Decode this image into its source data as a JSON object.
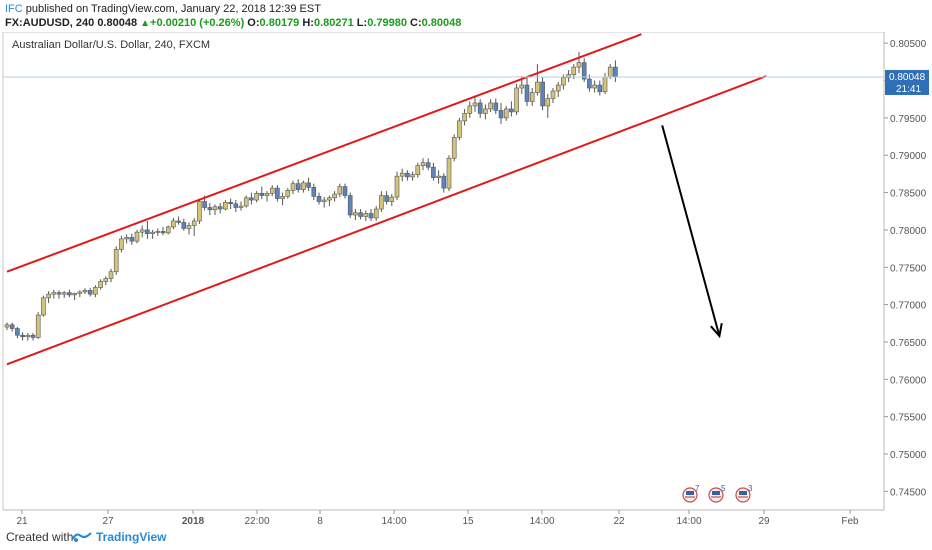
{
  "header": {
    "publisher": "IFC",
    "published_text": "published on TradingView.com, January 22, 2018 12:39 EST",
    "symbol": "FX:AUDUSD, 240",
    "last": "0.80048",
    "change_arrow": "▲",
    "change": "+0.00210 (+0.26%)",
    "o_label": "O:",
    "o_value": "0.80179",
    "h_label": "H:",
    "h_value": "0.80271",
    "l_label": "L:",
    "l_value": "0.79980",
    "c_label": "C:",
    "c_value": "0.80048"
  },
  "footer": {
    "created_with": "Created with",
    "brand": "TradingView",
    "logo_icon": "tradingview-logo-icon"
  },
  "colors": {
    "candle_up": "#d4c47a",
    "candle_down": "#5b84b8",
    "channel": "#e01919",
    "arrow": "#000000",
    "price_tag": "#2f6fb6",
    "axis_text": "#555555"
  },
  "chart_data": {
    "type": "candlestick",
    "title": "Australian Dollar/U.S. Dollar, 240, FXCM",
    "x_ticks": [
      "21",
      "27",
      "2018",
      "22:00",
      "8",
      "14:00",
      "15",
      "14:00",
      "22",
      "14:00",
      "29",
      "Feb"
    ],
    "y_ticks": [
      "0.80500",
      "0.80000",
      "0.79500",
      "0.79000",
      "0.78500",
      "0.78000",
      "0.77500",
      "0.77000",
      "0.76500",
      "0.76000",
      "0.75500",
      "0.75000",
      "0.74500"
    ],
    "ylim": [
      0.7425,
      0.8065
    ],
    "y_tick_values": [
      0.805,
      0.8,
      0.795,
      0.79,
      0.785,
      0.78,
      0.775,
      0.77,
      0.765,
      0.76,
      0.755,
      0.75,
      0.745
    ],
    "last_price_label": "0.80048",
    "countdown_label": "21:41",
    "last_price": 0.80048,
    "event_badges": [
      {
        "icon": "us-flag-event-icon",
        "count": "7"
      },
      {
        "icon": "us-flag-event-icon",
        "count": "5"
      },
      {
        "icon": "us-flag-event-icon",
        "count": "3"
      }
    ],
    "channel_lines": [
      {
        "name": "upper",
        "x0": 0,
        "y0": 0.7744,
        "x1": 122,
        "y1": 0.8062
      },
      {
        "name": "lower",
        "x0": 0,
        "y0": 0.762,
        "x1": 146,
        "y1": 0.8006
      }
    ],
    "forecast_arrow": {
      "x0": 126,
      "y0": 0.794,
      "x1": 137,
      "y1": 0.7658
    },
    "candles": [
      [
        0.767,
        0.7676,
        0.7666,
        0.7673
      ],
      [
        0.7673,
        0.7676,
        0.7664,
        0.7668
      ],
      [
        0.7668,
        0.767,
        0.7655,
        0.7659
      ],
      [
        0.7659,
        0.7663,
        0.7652,
        0.7657
      ],
      [
        0.7657,
        0.7662,
        0.7652,
        0.7659
      ],
      [
        0.7659,
        0.7662,
        0.7652,
        0.7656
      ],
      [
        0.7656,
        0.769,
        0.7654,
        0.7686
      ],
      [
        0.7686,
        0.7712,
        0.7684,
        0.7709
      ],
      [
        0.7709,
        0.7718,
        0.7702,
        0.7714
      ],
      [
        0.7714,
        0.772,
        0.7708,
        0.7716
      ],
      [
        0.7716,
        0.7719,
        0.7708,
        0.7714
      ],
      [
        0.7714,
        0.7718,
        0.7709,
        0.7716
      ],
      [
        0.7716,
        0.772,
        0.771,
        0.7713
      ],
      [
        0.7713,
        0.7716,
        0.7706,
        0.7715
      ],
      [
        0.7715,
        0.7719,
        0.771,
        0.7717
      ],
      [
        0.7717,
        0.7722,
        0.7714,
        0.7719
      ],
      [
        0.7719,
        0.7722,
        0.7711,
        0.7714
      ],
      [
        0.7714,
        0.7726,
        0.771,
        0.7723
      ],
      [
        0.7723,
        0.7734,
        0.772,
        0.7731
      ],
      [
        0.7731,
        0.7738,
        0.7726,
        0.7735
      ],
      [
        0.7735,
        0.7748,
        0.773,
        0.7744
      ],
      [
        0.7744,
        0.7778,
        0.774,
        0.7774
      ],
      [
        0.7774,
        0.7792,
        0.777,
        0.7788
      ],
      [
        0.7788,
        0.7794,
        0.7782,
        0.779
      ],
      [
        0.779,
        0.7795,
        0.778,
        0.7785
      ],
      [
        0.7785,
        0.78,
        0.7782,
        0.7797
      ],
      [
        0.7797,
        0.7806,
        0.779,
        0.78
      ],
      [
        0.78,
        0.7812,
        0.7788,
        0.7795
      ],
      [
        0.7795,
        0.78,
        0.7788,
        0.7797
      ],
      [
        0.7797,
        0.7802,
        0.7792,
        0.7798
      ],
      [
        0.7798,
        0.7804,
        0.7793,
        0.7796
      ],
      [
        0.7796,
        0.7806,
        0.7794,
        0.7804
      ],
      [
        0.7804,
        0.7816,
        0.7801,
        0.7812
      ],
      [
        0.7812,
        0.7818,
        0.7807,
        0.781
      ],
      [
        0.781,
        0.7815,
        0.7799,
        0.7802
      ],
      [
        0.7802,
        0.781,
        0.7794,
        0.7806
      ],
      [
        0.7806,
        0.7816,
        0.7792,
        0.7812
      ],
      [
        0.7812,
        0.7842,
        0.7808,
        0.7838
      ],
      [
        0.7838,
        0.7846,
        0.7826,
        0.783
      ],
      [
        0.783,
        0.7836,
        0.782,
        0.7827
      ],
      [
        0.7827,
        0.7834,
        0.782,
        0.7831
      ],
      [
        0.7831,
        0.7836,
        0.7822,
        0.7828
      ],
      [
        0.7828,
        0.784,
        0.7826,
        0.7837
      ],
      [
        0.7837,
        0.7842,
        0.7828,
        0.7835
      ],
      [
        0.7835,
        0.784,
        0.7824,
        0.783
      ],
      [
        0.783,
        0.7838,
        0.7826,
        0.7832
      ],
      [
        0.7832,
        0.7846,
        0.783,
        0.7843
      ],
      [
        0.7843,
        0.785,
        0.7834,
        0.784
      ],
      [
        0.784,
        0.7852,
        0.7837,
        0.7849
      ],
      [
        0.7849,
        0.7858,
        0.7841,
        0.7846
      ],
      [
        0.7846,
        0.7852,
        0.7838,
        0.7849
      ],
      [
        0.7849,
        0.786,
        0.7845,
        0.7856
      ],
      [
        0.7856,
        0.786,
        0.7838,
        0.7842
      ],
      [
        0.7842,
        0.785,
        0.7833,
        0.7845
      ],
      [
        0.7845,
        0.7856,
        0.7842,
        0.7853
      ],
      [
        0.7853,
        0.7866,
        0.7848,
        0.7862
      ],
      [
        0.7862,
        0.7868,
        0.785,
        0.7854
      ],
      [
        0.7854,
        0.7866,
        0.785,
        0.7863
      ],
      [
        0.7863,
        0.787,
        0.7852,
        0.7857
      ],
      [
        0.7857,
        0.7862,
        0.784,
        0.7845
      ],
      [
        0.7845,
        0.785,
        0.7834,
        0.7838
      ],
      [
        0.7838,
        0.7844,
        0.783,
        0.784
      ],
      [
        0.784,
        0.7846,
        0.7832,
        0.7843
      ],
      [
        0.7843,
        0.7852,
        0.7838,
        0.7848
      ],
      [
        0.7848,
        0.7862,
        0.7844,
        0.7858
      ],
      [
        0.7858,
        0.7862,
        0.7842,
        0.7846
      ],
      [
        0.7846,
        0.785,
        0.7816,
        0.782
      ],
      [
        0.782,
        0.7828,
        0.7813,
        0.7823
      ],
      [
        0.7823,
        0.7828,
        0.7814,
        0.7818
      ],
      [
        0.7818,
        0.7826,
        0.7812,
        0.7822
      ],
      [
        0.7822,
        0.7828,
        0.7812,
        0.7816
      ],
      [
        0.7816,
        0.7832,
        0.7812,
        0.7828
      ],
      [
        0.7828,
        0.7852,
        0.7824,
        0.7846
      ],
      [
        0.7846,
        0.7852,
        0.7834,
        0.7838
      ],
      [
        0.7838,
        0.7848,
        0.7832,
        0.7844
      ],
      [
        0.7844,
        0.7878,
        0.784,
        0.7872
      ],
      [
        0.7872,
        0.7882,
        0.7865,
        0.7876
      ],
      [
        0.7876,
        0.788,
        0.7866,
        0.7871
      ],
      [
        0.7871,
        0.7878,
        0.7866,
        0.7874
      ],
      [
        0.7874,
        0.789,
        0.787,
        0.7886
      ],
      [
        0.7886,
        0.7896,
        0.788,
        0.789
      ],
      [
        0.789,
        0.7896,
        0.788,
        0.7884
      ],
      [
        0.7884,
        0.789,
        0.7866,
        0.787
      ],
      [
        0.787,
        0.788,
        0.7862,
        0.7872
      ],
      [
        0.7872,
        0.7876,
        0.785,
        0.7856
      ],
      [
        0.7856,
        0.79,
        0.7852,
        0.7896
      ],
      [
        0.7896,
        0.7928,
        0.7892,
        0.7924
      ],
      [
        0.7924,
        0.795,
        0.792,
        0.7946
      ],
      [
        0.7946,
        0.7962,
        0.794,
        0.7956
      ],
      [
        0.7956,
        0.7972,
        0.795,
        0.7966
      ],
      [
        0.7966,
        0.7978,
        0.7958,
        0.797
      ],
      [
        0.797,
        0.7975,
        0.795,
        0.7956
      ],
      [
        0.7956,
        0.7968,
        0.7948,
        0.7962
      ],
      [
        0.7962,
        0.7975,
        0.7958,
        0.797
      ],
      [
        0.797,
        0.7976,
        0.7955,
        0.796
      ],
      [
        0.796,
        0.797,
        0.7942,
        0.795
      ],
      [
        0.795,
        0.7966,
        0.7946,
        0.7962
      ],
      [
        0.7962,
        0.7972,
        0.7952,
        0.7958
      ],
      [
        0.7958,
        0.7996,
        0.7954,
        0.799
      ],
      [
        0.799,
        0.8006,
        0.7982,
        0.7994
      ],
      [
        0.7994,
        0.8004,
        0.7966,
        0.7972
      ],
      [
        0.7972,
        0.799,
        0.7966,
        0.7984
      ],
      [
        0.7984,
        0.8022,
        0.798,
        0.7998
      ],
      [
        0.7998,
        0.8004,
        0.796,
        0.7966
      ],
      [
        0.7966,
        0.7982,
        0.795,
        0.7976
      ],
      [
        0.7976,
        0.799,
        0.797,
        0.7986
      ],
      [
        0.7986,
        0.7998,
        0.7978,
        0.7994
      ],
      [
        0.7994,
        0.8008,
        0.7988,
        0.8004
      ],
      [
        0.8004,
        0.8014,
        0.7998,
        0.8008
      ],
      [
        0.8008,
        0.8022,
        0.8002,
        0.8018
      ],
      [
        0.8018,
        0.8038,
        0.801,
        0.8024
      ],
      [
        0.8024,
        0.803,
        0.7998,
        0.8002
      ],
      [
        0.8002,
        0.8008,
        0.7985,
        0.799
      ],
      [
        0.799,
        0.8,
        0.7984,
        0.7994
      ],
      [
        0.7994,
        0.8,
        0.798,
        0.7985
      ],
      [
        0.7985,
        0.801,
        0.7982,
        0.8005
      ],
      [
        0.8005,
        0.8022,
        0.8002,
        0.8018
      ],
      [
        0.8018,
        0.8027,
        0.7998,
        0.8005
      ]
    ]
  }
}
